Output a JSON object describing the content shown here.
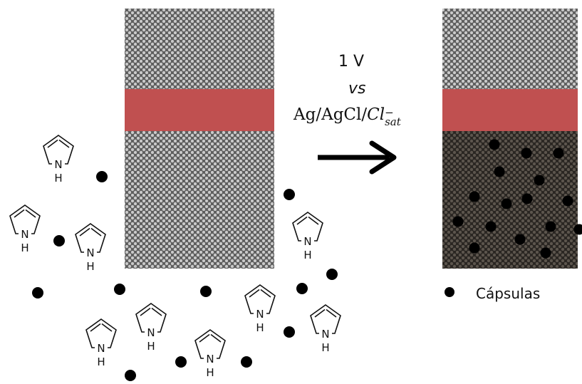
{
  "diagram": {
    "reaction_conditions": {
      "voltage": "1 V",
      "versus": "vs",
      "reference_prefix": "Ag/AgCl/",
      "reference_italic": "Cl",
      "reference_sup": "−",
      "reference_sub": "sat"
    },
    "pyrrole_label": "H",
    "legend": {
      "label": "Cápsulas",
      "marker_color": "#000000"
    },
    "colors": {
      "electrode_band": "#c05050",
      "fabric_light": "#c9c9c9",
      "fabric_dark": "#5e5e5e",
      "coated_fabric_light": "#5c554d",
      "coated_fabric_dark": "#2a2622",
      "dot": "#000000",
      "arrow": "#000000"
    },
    "icons": [
      "pyrrole-molecule-icon",
      "capsule-dot-icon",
      "reaction-arrow-icon"
    ]
  }
}
